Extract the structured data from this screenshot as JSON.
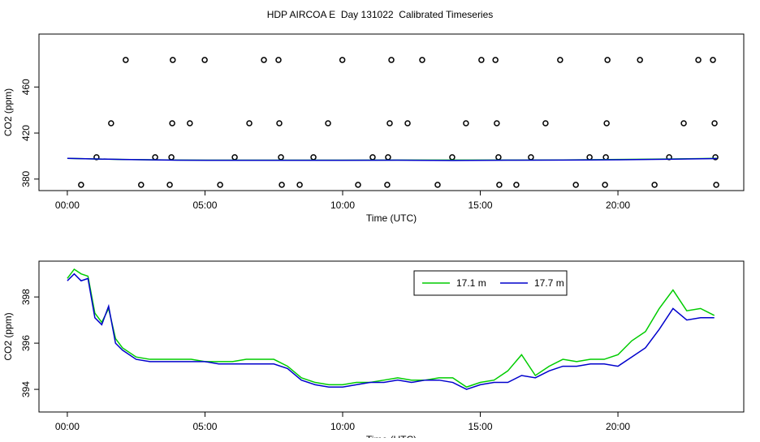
{
  "title": "HDP AIRCOA E  Day 131022  Calibrated Timeseries",
  "chart_data": [
    {
      "type": "scatter",
      "xlabel": "Time (UTC)",
      "ylabel": "CO2 (ppm)",
      "xlim": [
        -1.03,
        24.57
      ],
      "ylim": [
        370,
        506
      ],
      "xticks": [
        {
          "value": 0,
          "label": "00:00"
        },
        {
          "value": 5,
          "label": "05:00"
        },
        {
          "value": 10,
          "label": "10:00"
        },
        {
          "value": 15,
          "label": "15:00"
        },
        {
          "value": 20,
          "label": "20:00"
        }
      ],
      "yticks": [
        380,
        420,
        460
      ],
      "series": [
        {
          "type": "scatter",
          "color": "#000000",
          "x": [
            2.12,
            3.83,
            4.99,
            7.14,
            7.67,
            9.99,
            11.77,
            12.89,
            15.04,
            15.55,
            17.9,
            19.62,
            20.8,
            22.92,
            23.45,
            1.59,
            3.81,
            4.45,
            6.61,
            7.7,
            9.47,
            11.71,
            12.36,
            14.48,
            15.6,
            17.37,
            19.59,
            22.39,
            23.51,
            1.06,
            3.19,
            3.78,
            6.08,
            7.76,
            8.94,
            11.09,
            11.65,
            13.98,
            15.66,
            16.84,
            18.97,
            19.56,
            21.86,
            23.54,
            0.5,
            2.68,
            3.72,
            5.55,
            7.79,
            8.44,
            10.56,
            11.62,
            13.45,
            15.69,
            16.31,
            18.47,
            19.53,
            21.33,
            23.57
          ],
          "values": [
            483.5,
            483.5,
            483.5,
            483.5,
            483.5,
            483.5,
            483.5,
            483.5,
            483.5,
            483.5,
            483.5,
            483.5,
            483.5,
            483.5,
            483.5,
            428.5,
            428.5,
            428.5,
            428.5,
            428.5,
            428.5,
            428.5,
            428.5,
            428.5,
            428.5,
            428.5,
            428.5,
            428.5,
            428.5,
            399,
            399,
            399,
            399,
            399,
            399,
            399,
            399,
            399,
            399,
            399,
            399,
            399,
            399,
            399,
            375,
            375,
            375,
            375,
            375,
            375,
            375,
            375,
            375,
            375,
            375,
            375,
            375,
            375,
            375
          ]
        },
        {
          "type": "line",
          "color": "#00cc00",
          "x": [
            0,
            2,
            4,
            6,
            8,
            10,
            12,
            14,
            16,
            18,
            20,
            22,
            23.6
          ],
          "values": [
            398,
            397,
            396.5,
            396.4,
            396.4,
            396.4,
            396.5,
            396.5,
            396.5,
            396.6,
            397,
            397.5,
            398
          ]
        },
        {
          "type": "line",
          "color": "#0000cc",
          "x": [
            0,
            2,
            4,
            6,
            8,
            10,
            12,
            14,
            16,
            18,
            20,
            22,
            23.6
          ],
          "values": [
            398,
            397,
            396.4,
            396.3,
            396.3,
            396.3,
            396.4,
            396.2,
            396.4,
            396.5,
            396.8,
            397.3,
            397.8
          ]
        }
      ]
    },
    {
      "type": "line",
      "xlabel": "Time (UTC)",
      "ylabel": "CO2 (ppm)",
      "xlim": [
        -1.03,
        24.57
      ],
      "ylim": [
        393.02,
        399.55
      ],
      "xticks": [
        {
          "value": 0,
          "label": "00:00"
        },
        {
          "value": 5,
          "label": "05:00"
        },
        {
          "value": 10,
          "label": "10:00"
        },
        {
          "value": 15,
          "label": "15:00"
        },
        {
          "value": 20,
          "label": "20:00"
        }
      ],
      "yticks": [
        394,
        396,
        398
      ],
      "series": [
        {
          "name": "17.1 m",
          "color": "#00cc00",
          "x": [
            0,
            0.25,
            0.5,
            0.75,
            1,
            1.25,
            1.5,
            1.75,
            2,
            2.5,
            3,
            3.5,
            4,
            4.5,
            5,
            5.5,
            6,
            6.5,
            7,
            7.5,
            8,
            8.5,
            9,
            9.5,
            10,
            10.5,
            11,
            11.5,
            12,
            12.5,
            13,
            13.5,
            14,
            14.5,
            15,
            15.5,
            16,
            16.5,
            17,
            17.5,
            18,
            18.5,
            19,
            19.5,
            20,
            20.5,
            21,
            21.5,
            22,
            22.5,
            23,
            23.5
          ],
          "values": [
            398.8,
            399.2,
            399.0,
            398.9,
            397.3,
            396.9,
            397.5,
            396.2,
            395.8,
            395.4,
            395.3,
            395.3,
            395.3,
            395.3,
            395.2,
            395.2,
            395.2,
            395.3,
            395.3,
            395.3,
            395.0,
            394.5,
            394.3,
            394.2,
            394.2,
            394.3,
            394.3,
            394.4,
            394.5,
            394.4,
            394.4,
            394.5,
            394.5,
            394.1,
            394.3,
            394.4,
            394.8,
            395.5,
            394.6,
            395.0,
            395.3,
            395.2,
            395.3,
            395.3,
            395.5,
            396.1,
            396.5,
            397.5,
            398.3,
            397.4,
            397.5,
            397.2
          ]
        },
        {
          "name": "17.7 m",
          "color": "#0000cc",
          "x": [
            0,
            0.25,
            0.5,
            0.75,
            1,
            1.25,
            1.5,
            1.75,
            2,
            2.5,
            3,
            3.5,
            4,
            4.5,
            5,
            5.5,
            6,
            6.5,
            7,
            7.5,
            8,
            8.5,
            9,
            9.5,
            10,
            10.5,
            11,
            11.5,
            12,
            12.5,
            13,
            13.5,
            14,
            14.5,
            15,
            15.5,
            16,
            16.5,
            17,
            17.5,
            18,
            18.5,
            19,
            19.5,
            20,
            20.5,
            21,
            21.5,
            22,
            22.5,
            23,
            23.5
          ],
          "values": [
            398.7,
            399.0,
            398.7,
            398.8,
            397.1,
            396.8,
            397.6,
            396.0,
            395.7,
            395.3,
            395.2,
            395.2,
            395.2,
            395.2,
            395.2,
            395.1,
            395.1,
            395.1,
            395.1,
            395.1,
            394.9,
            394.4,
            394.2,
            394.1,
            394.1,
            394.2,
            394.3,
            394.3,
            394.4,
            394.3,
            394.4,
            394.4,
            394.3,
            394.0,
            394.2,
            394.3,
            394.3,
            394.6,
            394.5,
            394.8,
            395.0,
            395.0,
            395.1,
            395.1,
            395.0,
            395.4,
            395.8,
            396.6,
            397.5,
            397.0,
            397.1,
            397.1
          ]
        }
      ],
      "legend": "top-right"
    }
  ]
}
